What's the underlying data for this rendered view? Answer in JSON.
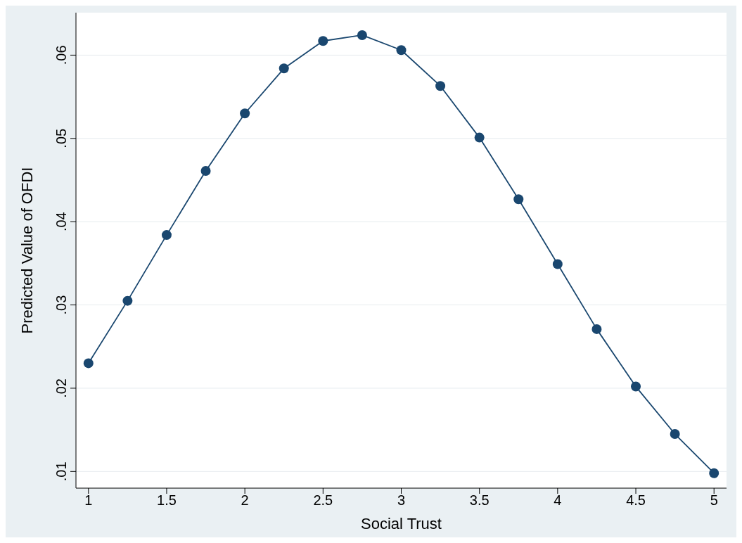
{
  "chart_data": {
    "type": "line",
    "xlabel": "Social Trust",
    "ylabel": "Predicted Value of OFDI",
    "x": [
      1,
      1.25,
      1.5,
      1.75,
      2,
      2.25,
      2.5,
      2.75,
      3,
      3.25,
      3.5,
      3.75,
      4,
      4.25,
      4.5,
      4.75,
      5
    ],
    "series": [
      {
        "color": "#1a476f",
        "values": [
          0.023,
          0.0305,
          0.0384,
          0.0461,
          0.053,
          0.0584,
          0.0617,
          0.0624,
          0.0606,
          0.0563,
          0.0501,
          0.0427,
          0.0349,
          0.0271,
          0.0202,
          0.0145,
          0.0098
        ]
      }
    ],
    "xlim": [
      0.92,
      5.08
    ],
    "xticks": [
      1,
      1.5,
      2,
      2.5,
      3,
      3.5,
      4,
      4.5,
      5
    ],
    "ylim": [
      0.008,
      0.0651
    ],
    "yticks": [
      {
        "value": 0.01,
        "label": ".01"
      },
      {
        "value": 0.02,
        "label": ".02"
      },
      {
        "value": 0.03,
        "label": ".03"
      },
      {
        "value": 0.04,
        "label": ".04"
      },
      {
        "value": 0.05,
        "label": ".05"
      },
      {
        "value": 0.06,
        "label": ".06"
      }
    ],
    "grid": "y",
    "marker": "circle",
    "line_style": "solid",
    "legend": false
  }
}
